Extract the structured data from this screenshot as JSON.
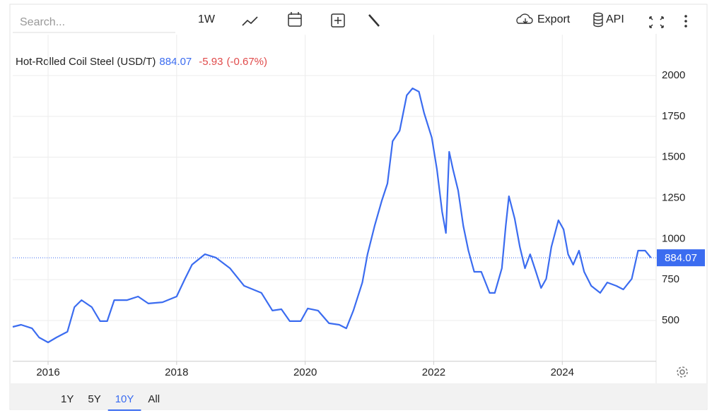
{
  "ui": {
    "search_placeholder": "Search...",
    "interval": "1W",
    "export": "Export",
    "api": "API",
    "ranges": [
      "1Y",
      "5Y",
      "10Y",
      "All"
    ]
  },
  "chart_data": {
    "type": "line",
    "title": "Hot-Rolled Coil Steel (USD/T)",
    "last_value": 884.07,
    "change": -5.93,
    "change_percent": "(-0.67%)",
    "color": "#3b6cf0",
    "grid": true,
    "x": [
      2015.45,
      2015.58,
      2015.75,
      2015.86,
      2016.0,
      2016.13,
      2016.3,
      2016.41,
      2016.52,
      2016.68,
      2016.81,
      2016.92,
      2017.03,
      2017.23,
      2017.4,
      2017.56,
      2017.78,
      2018.0,
      2018.13,
      2018.24,
      2018.44,
      2018.61,
      2018.83,
      2019.05,
      2019.32,
      2019.49,
      2019.63,
      2019.76,
      2019.93,
      2020.04,
      2020.2,
      2020.37,
      2020.53,
      2020.64,
      2020.75,
      2020.89,
      2020.97,
      2021.08,
      2021.19,
      2021.28,
      2021.36,
      2021.47,
      2021.58,
      2021.67,
      2021.77,
      2021.85,
      2021.97,
      2022.05,
      2022.13,
      2022.19,
      2022.24,
      2022.3,
      2022.38,
      2022.46,
      2022.54,
      2022.63,
      2022.74,
      2022.87,
      2022.95,
      2023.06,
      2023.12,
      2023.17,
      2023.26,
      2023.34,
      2023.42,
      2023.5,
      2023.59,
      2023.67,
      2023.75,
      2023.83,
      2023.94,
      2024.02,
      2024.09,
      2024.17,
      2024.26,
      2024.34,
      2024.45,
      2024.59,
      2024.7,
      2024.84,
      2024.95,
      2025.08,
      2025.18,
      2025.29,
      2025.38
    ],
    "values": [
      461,
      474,
      452,
      396,
      366,
      396,
      431,
      582,
      625,
      582,
      496,
      496,
      625,
      625,
      647,
      604,
      612,
      647,
      755,
      842,
      906,
      885,
      820,
      712,
      669,
      561,
      569,
      496,
      496,
      574,
      561,
      483,
      474,
      452,
      561,
      733,
      906,
      1079,
      1231,
      1339,
      1598,
      1663,
      1879,
      1922,
      1901,
      1771,
      1620,
      1425,
      1166,
      1036,
      1533,
      1425,
      1296,
      1079,
      928,
      798,
      798,
      669,
      669,
      820,
      1079,
      1261,
      1123,
      950,
      820,
      906,
      798,
      699,
      755,
      950,
      1114,
      1058,
      906,
      842,
      928,
      798,
      712,
      669,
      733,
      712,
      690,
      755,
      928,
      928,
      884.07
    ],
    "xlim": [
      2015.45,
      2025.46
    ],
    "xticks": [
      2016,
      2018,
      2020,
      2022,
      2024
    ],
    "ylim": [
      250,
      2250
    ],
    "yticks": [
      500,
      750,
      1000,
      1250,
      1500,
      1750,
      2000
    ]
  }
}
